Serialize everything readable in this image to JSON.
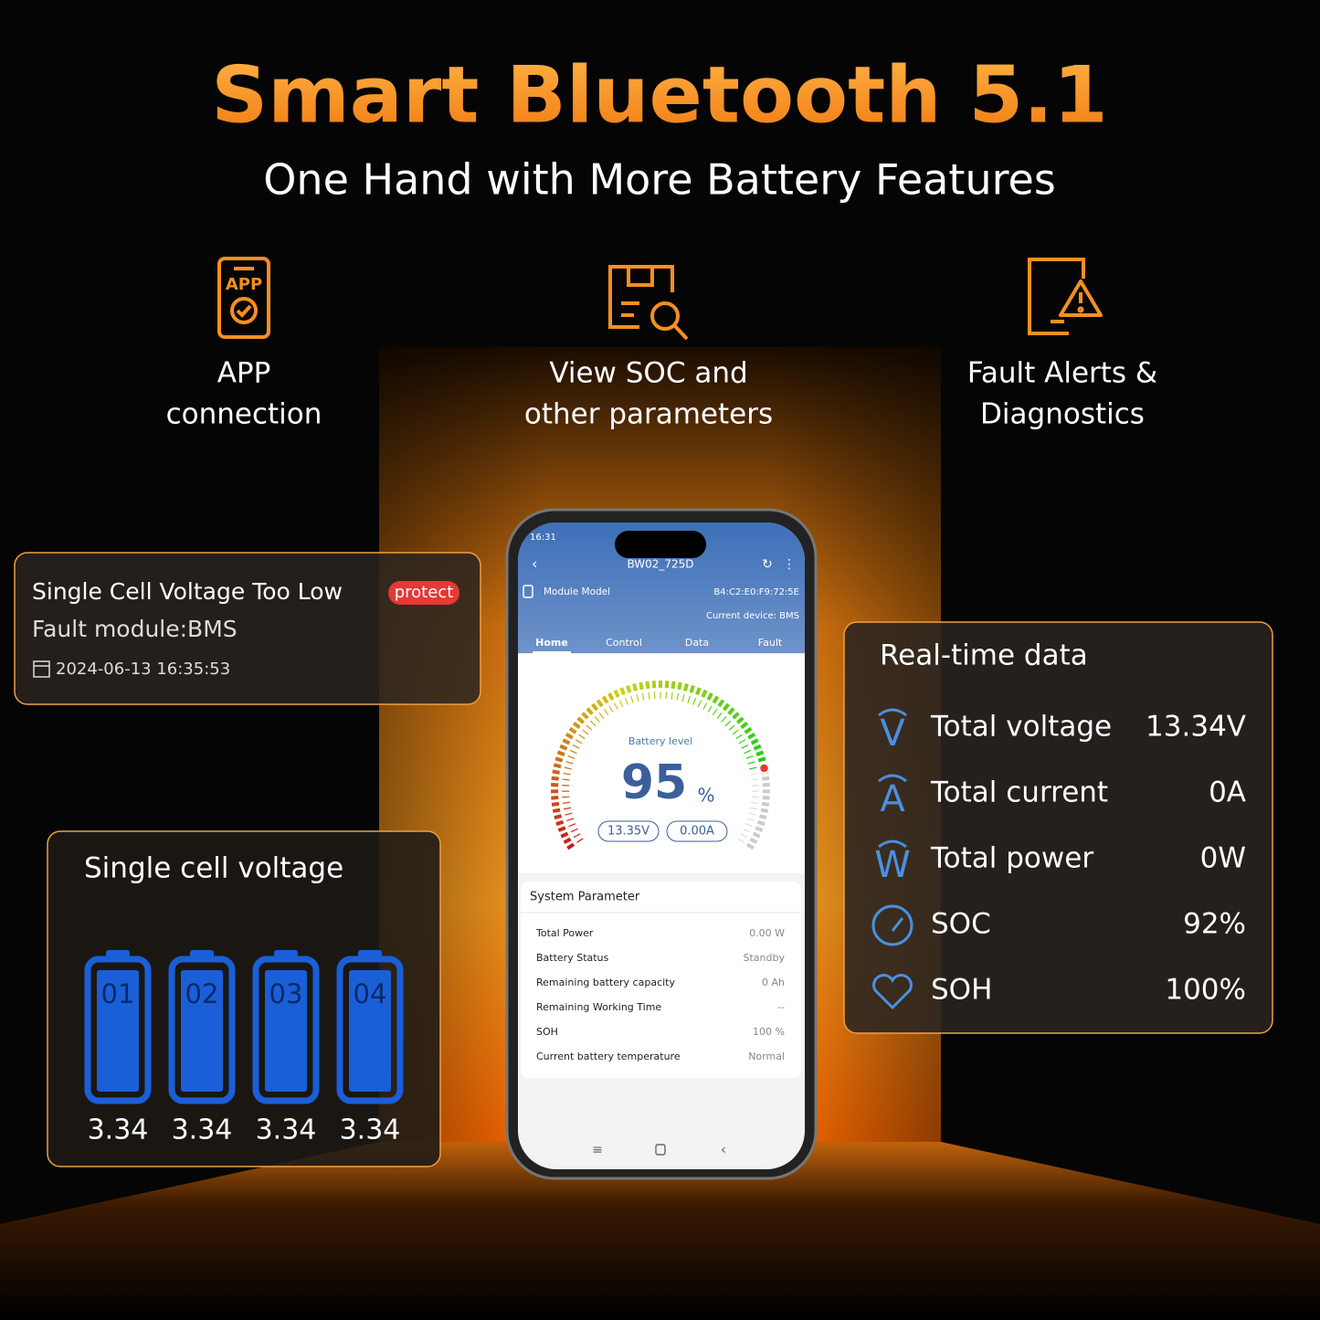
{
  "header": {
    "title": "Smart Bluetooth 5.1",
    "subtitle": "One Hand with More Battery Features"
  },
  "features": [
    {
      "icon_text": "APP",
      "lines": [
        "APP",
        "connection"
      ]
    },
    {
      "lines": [
        "View SOC and",
        "other parameters"
      ]
    },
    {
      "lines": [
        "Fault Alerts &",
        "Diagnostics"
      ]
    }
  ],
  "fault_card": {
    "title": "Single Cell Voltage Too Low",
    "badge": "protect",
    "module": "Fault module:BMS",
    "time": "2024-06-13 16:35:53"
  },
  "cell_card": {
    "title": "Single cell voltage",
    "cells": [
      {
        "label": "01",
        "voltage": 3.34
      },
      {
        "label": "02",
        "voltage": 3.34
      },
      {
        "label": "03",
        "voltage": 3.34
      },
      {
        "label": "04",
        "voltage": 3.34
      }
    ]
  },
  "realtime": {
    "title": "Real-time data",
    "rows": [
      {
        "icon": "V",
        "label": "Total voltage",
        "value": "13.34V"
      },
      {
        "icon": "A",
        "label": "Total current",
        "value": "0A"
      },
      {
        "icon": "W",
        "label": "Total power",
        "value": "0W"
      },
      {
        "label": "SOC",
        "value": "92%"
      },
      {
        "label": "SOH",
        "value": "100%"
      }
    ]
  },
  "phone": {
    "time": "16:31",
    "device": "BW02_725D",
    "module_label": "Module Model",
    "mac": "B4:C2:E0:F9:72:5E",
    "current_device": "Current device: BMS",
    "tabs": [
      "Home",
      "Control",
      "Data",
      "Fault"
    ],
    "gauge": {
      "label": "Battery level",
      "value": 95,
      "unit": "%",
      "voltage": "13.35V",
      "current": "0.00A"
    },
    "system": {
      "title": "System Parameter",
      "rows": [
        [
          "Total Power",
          "0.00 W"
        ],
        [
          "Battery Status",
          "Standby"
        ],
        [
          "Remaining battery capacity",
          "0 Ah"
        ],
        [
          "Remaining Working Time",
          "--"
        ],
        [
          "SOH",
          "100 %"
        ],
        [
          "Current battery temperature",
          "Normal"
        ]
      ]
    }
  }
}
